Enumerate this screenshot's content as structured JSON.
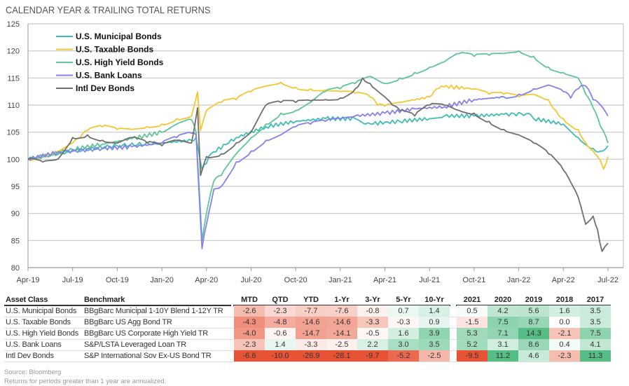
{
  "title": "CALENDAR YEAR & TRAILING TOTAL RETURNS",
  "colors": {
    "muni": "#3fbcb3",
    "taxable": "#f5c630",
    "hy": "#5fc497",
    "loans": "#8480ec",
    "intl": "#6e6e6e",
    "neg": "#e64a2a",
    "pos": "#4cba7f"
  },
  "chart_data": {
    "type": "line",
    "title": "CALENDAR YEAR & TRAILING TOTAL RETURNS",
    "xlabel": "",
    "ylabel": "",
    "ylim": [
      80,
      125
    ],
    "yticks": [
      80,
      85,
      90,
      95,
      100,
      105,
      110,
      115,
      120,
      125
    ],
    "xticks": [
      "Apr-19",
      "Jul-19",
      "Oct-19",
      "Jan-20",
      "Apr-20",
      "Jul-20",
      "Oct-20",
      "Jan-21",
      "Apr-21",
      "Jul-21",
      "Oct-21",
      "Jan-22",
      "Apr-22",
      "Jul-22"
    ],
    "x_unit": "months since Apr-19",
    "xlim": [
      0,
      39
    ],
    "legend_position": "top-left",
    "grid": true,
    "series": [
      {
        "key": "muni",
        "name": "U.S.  Municipal Bonds",
        "points": [
          [
            0,
            100
          ],
          [
            3,
            101.5
          ],
          [
            6,
            102.5
          ],
          [
            9,
            103
          ],
          [
            11,
            103.5
          ],
          [
            11.3,
            104
          ],
          [
            11.7,
            98
          ],
          [
            12.3,
            101
          ],
          [
            14,
            104
          ],
          [
            16,
            106
          ],
          [
            18,
            107
          ],
          [
            20,
            107.5
          ],
          [
            22,
            107.5
          ],
          [
            22.7,
            106.5
          ],
          [
            25,
            107
          ],
          [
            27,
            107.5
          ],
          [
            28,
            108
          ],
          [
            30,
            108
          ],
          [
            32,
            108.3
          ],
          [
            33.5,
            108.4
          ],
          [
            34,
            107.5
          ],
          [
            36,
            106.5
          ],
          [
            37,
            104
          ],
          [
            38,
            102
          ],
          [
            38.5,
            101.5
          ],
          [
            39,
            102.5
          ]
        ]
      },
      {
        "key": "taxable",
        "name": "U.S. Taxable Bonds",
        "points": [
          [
            0,
            100
          ],
          [
            1,
            100.7
          ],
          [
            2,
            101.5
          ],
          [
            3,
            103
          ],
          [
            3.5,
            104
          ],
          [
            4,
            105.3
          ],
          [
            5,
            106
          ],
          [
            6,
            105.5
          ],
          [
            7,
            105.5
          ],
          [
            8,
            106
          ],
          [
            9,
            106.5
          ],
          [
            10,
            107.5
          ],
          [
            11,
            108
          ],
          [
            11.4,
            112.4
          ],
          [
            11.6,
            105.3
          ],
          [
            12,
            109
          ],
          [
            13,
            110.5
          ],
          [
            14,
            111
          ],
          [
            15,
            112.5
          ],
          [
            16,
            113.5
          ],
          [
            17,
            114.2
          ],
          [
            18,
            113.3
          ],
          [
            19,
            113
          ],
          [
            20,
            112.8
          ],
          [
            21,
            112.5
          ],
          [
            22,
            112.2
          ],
          [
            23,
            111.5
          ],
          [
            23.5,
            110
          ],
          [
            24,
            109.8
          ],
          [
            25,
            110.5
          ],
          [
            27,
            111.5
          ],
          [
            27.8,
            113.5
          ],
          [
            30,
            113
          ],
          [
            31,
            112
          ],
          [
            32,
            112
          ],
          [
            33,
            111.5
          ],
          [
            34,
            112
          ],
          [
            35,
            111
          ],
          [
            35.5,
            109
          ],
          [
            36,
            107.5
          ],
          [
            37,
            105.5
          ],
          [
            37.5,
            103
          ],
          [
            38,
            101.5
          ],
          [
            38.3,
            100.5
          ],
          [
            38.7,
            98.2
          ],
          [
            39,
            100.5
          ]
        ]
      },
      {
        "key": "hy",
        "name": "U.S. High Yield Bonds",
        "points": [
          [
            0,
            100
          ],
          [
            3,
            101.8
          ],
          [
            5,
            102.8
          ],
          [
            7,
            103.8
          ],
          [
            9,
            105
          ],
          [
            10,
            106.5
          ],
          [
            11,
            107.3
          ],
          [
            11.3,
            105
          ],
          [
            11.7,
            85
          ],
          [
            12,
            90
          ],
          [
            12.5,
            96
          ],
          [
            13,
            97
          ],
          [
            14,
            101
          ],
          [
            15,
            104
          ],
          [
            16,
            106.5
          ],
          [
            17,
            108.5
          ],
          [
            18,
            109
          ],
          [
            19,
            110.5
          ],
          [
            20,
            112.5
          ],
          [
            21,
            113
          ],
          [
            22,
            114
          ],
          [
            23,
            115.3
          ],
          [
            24,
            114
          ],
          [
            25,
            115
          ],
          [
            26,
            116
          ],
          [
            27,
            117
          ],
          [
            28,
            118
          ],
          [
            29,
            119.5
          ],
          [
            30,
            119
          ],
          [
            31,
            119.2
          ],
          [
            32,
            119.5
          ],
          [
            33,
            120
          ],
          [
            34,
            119
          ],
          [
            35,
            117
          ],
          [
            36,
            116
          ],
          [
            37,
            115
          ],
          [
            37.5,
            112
          ],
          [
            38,
            109.5
          ],
          [
            38.5,
            106
          ],
          [
            39,
            103
          ]
        ]
      },
      {
        "key": "loans",
        "name": "U.S. Bank Loans",
        "points": [
          [
            0,
            100
          ],
          [
            2,
            101.3
          ],
          [
            5,
            102
          ],
          [
            7,
            102.3
          ],
          [
            9,
            103
          ],
          [
            10,
            104
          ],
          [
            11,
            104.8
          ],
          [
            11.3,
            104.5
          ],
          [
            11.7,
            83.5
          ],
          [
            12,
            88
          ],
          [
            12.5,
            94.5
          ],
          [
            13,
            95
          ],
          [
            14,
            99.5
          ],
          [
            15,
            101.5
          ],
          [
            16,
            103.5
          ],
          [
            17,
            104.5
          ],
          [
            18,
            106
          ],
          [
            19,
            106.5
          ],
          [
            20,
            107
          ],
          [
            21,
            107.5
          ],
          [
            22,
            108
          ],
          [
            24,
            108.5
          ],
          [
            26,
            109.3
          ],
          [
            28,
            109.7
          ],
          [
            30,
            111
          ],
          [
            32,
            111.5
          ],
          [
            33,
            112
          ],
          [
            34,
            113
          ],
          [
            35,
            113.7
          ],
          [
            36,
            112.5
          ],
          [
            36.5,
            111.3
          ],
          [
            37,
            113
          ],
          [
            37.5,
            113.5
          ],
          [
            38,
            111
          ],
          [
            38.5,
            110
          ],
          [
            39,
            108
          ]
        ]
      },
      {
        "key": "intl",
        "name": "Intl Dev Bonds",
        "points": [
          [
            0,
            100
          ],
          [
            1,
            99.5
          ],
          [
            2,
            100
          ],
          [
            3,
            104
          ],
          [
            4,
            104.5
          ],
          [
            5,
            103.5
          ],
          [
            6,
            103
          ],
          [
            7,
            104
          ],
          [
            8,
            103
          ],
          [
            9,
            102.5
          ],
          [
            10,
            103.5
          ],
          [
            11,
            103
          ],
          [
            11.4,
            109.5
          ],
          [
            11.6,
            97
          ],
          [
            12,
            100.5
          ],
          [
            13,
            101
          ],
          [
            14,
            103
          ],
          [
            15,
            105
          ],
          [
            16,
            110
          ],
          [
            17,
            110.5
          ],
          [
            18,
            110.5
          ],
          [
            19,
            110.8
          ],
          [
            20,
            111
          ],
          [
            21,
            111.3
          ],
          [
            22,
            113
          ],
          [
            22.5,
            115
          ],
          [
            23,
            114
          ],
          [
            24,
            111.5
          ],
          [
            24.5,
            110
          ],
          [
            25,
            109
          ],
          [
            26,
            108
          ],
          [
            27,
            110
          ],
          [
            28,
            110
          ],
          [
            29,
            109
          ],
          [
            30,
            108.5
          ],
          [
            31,
            107
          ],
          [
            32,
            105.5
          ],
          [
            33,
            104.5
          ],
          [
            34,
            103
          ],
          [
            35,
            101
          ],
          [
            36,
            98
          ],
          [
            37,
            93
          ],
          [
            37.5,
            88
          ],
          [
            38,
            89.5
          ],
          [
            38.3,
            87
          ],
          [
            38.6,
            83
          ],
          [
            39,
            84.5
          ]
        ]
      }
    ]
  },
  "table": {
    "headers": [
      "Asset Class",
      "Benchmark",
      "MTD",
      "QTD",
      "YTD",
      "1-Yr",
      "3-Yr",
      "5-Yr",
      "10-Yr",
      "2021",
      "2020",
      "2019",
      "2018",
      "2017"
    ],
    "rows": [
      {
        "asset": "U.S. Municipal Bonds",
        "benchmark": "BBgBarc Municipal 1-10Y Blend 1-12Y TR",
        "values": [
          "-2.6",
          "-2.3",
          "-7.7",
          "-7.6",
          "-0.8",
          "0.7",
          "1.4",
          "0.5",
          "4.2",
          "5.6",
          "1.6",
          "3.5"
        ]
      },
      {
        "asset": "U.S. Taxable Bonds",
        "benchmark": "BBgBarc US Agg Bond TR",
        "values": [
          "-4.3",
          "-4.8",
          "-14.6",
          "-14.6",
          "-3.3",
          "-0.3",
          "0.9",
          "-1.5",
          "7.5",
          "8.7",
          "0.0",
          "3.5"
        ]
      },
      {
        "asset": "U.S. High Yield Bonds",
        "benchmark": "BBgBarc US Corporate High Yield TR",
        "values": [
          "-4.0",
          "-0.6",
          "-14.7",
          "-14.1",
          "-0.5",
          "1.6",
          "3.9",
          "5.3",
          "7.1",
          "14.3",
          "-2.1",
          "7.5"
        ]
      },
      {
        "asset": "U.S. Bank Loans",
        "benchmark": "S&P/LSTA Leveraged Loan TR",
        "values": [
          "-2.3",
          "1.4",
          "-3.3",
          "-2.5",
          "2.2",
          "3.0",
          "3.5",
          "5.2",
          "3.1",
          "8.6",
          "0.4",
          "4.1"
        ]
      },
      {
        "asset": "Intl Dev Bonds",
        "benchmark": "S&P International Sov Ex-US Bond TR",
        "values": [
          "-6.6",
          "-10.0",
          "-26.9",
          "-28.1",
          "-9.7",
          "-5.2",
          "-2.5",
          "-9.5",
          "11.2",
          "4.6",
          "-2.3",
          "11.3"
        ]
      }
    ]
  },
  "footer": {
    "source": "Source: Bloomberg",
    "note": "Returns for periods greater than 1 year are annualized."
  }
}
